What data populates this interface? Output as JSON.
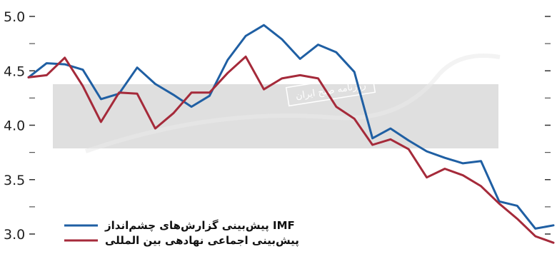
{
  "chart_data": {
    "type": "line",
    "title": "",
    "xlabel": "",
    "ylabel": "",
    "ylim": [
      3.0,
      5.0
    ],
    "yticks": [
      "5.0",
      "4.5",
      "4.0",
      "3.5",
      "3.0"
    ],
    "minor_tick_mark": "-",
    "grid": false,
    "legend_position": "bottom-left",
    "series": [
      {
        "name": "پیش‌بینی گزارش‌های چشم‌انداز IMF",
        "color": "#1f5fa3",
        "values": [
          4.44,
          4.57,
          4.56,
          4.51,
          4.24,
          4.29,
          4.53,
          4.38,
          4.28,
          4.17,
          4.27,
          4.6,
          4.82,
          4.92,
          4.79,
          4.61,
          4.74,
          4.67,
          4.49,
          3.88,
          3.97,
          3.86,
          3.76,
          3.7,
          3.65,
          3.67,
          3.3,
          3.26,
          3.05,
          3.08
        ]
      },
      {
        "name": "پیش‌بینی اجماعی نهادهی بین المللی",
        "color": "#a52a3a",
        "values": [
          4.44,
          4.46,
          4.62,
          4.36,
          4.03,
          4.3,
          4.29,
          3.97,
          4.11,
          4.3,
          4.3,
          4.48,
          4.63,
          4.33,
          4.43,
          4.46,
          4.43,
          4.17,
          4.06,
          3.82,
          3.87,
          3.78,
          3.52,
          3.6,
          3.54,
          3.44,
          3.28,
          3.14,
          2.98,
          2.92
        ]
      }
    ]
  },
  "watermark": {
    "caption": "روزنامه صبح ایران",
    "band_color": "#d9d9d9"
  }
}
